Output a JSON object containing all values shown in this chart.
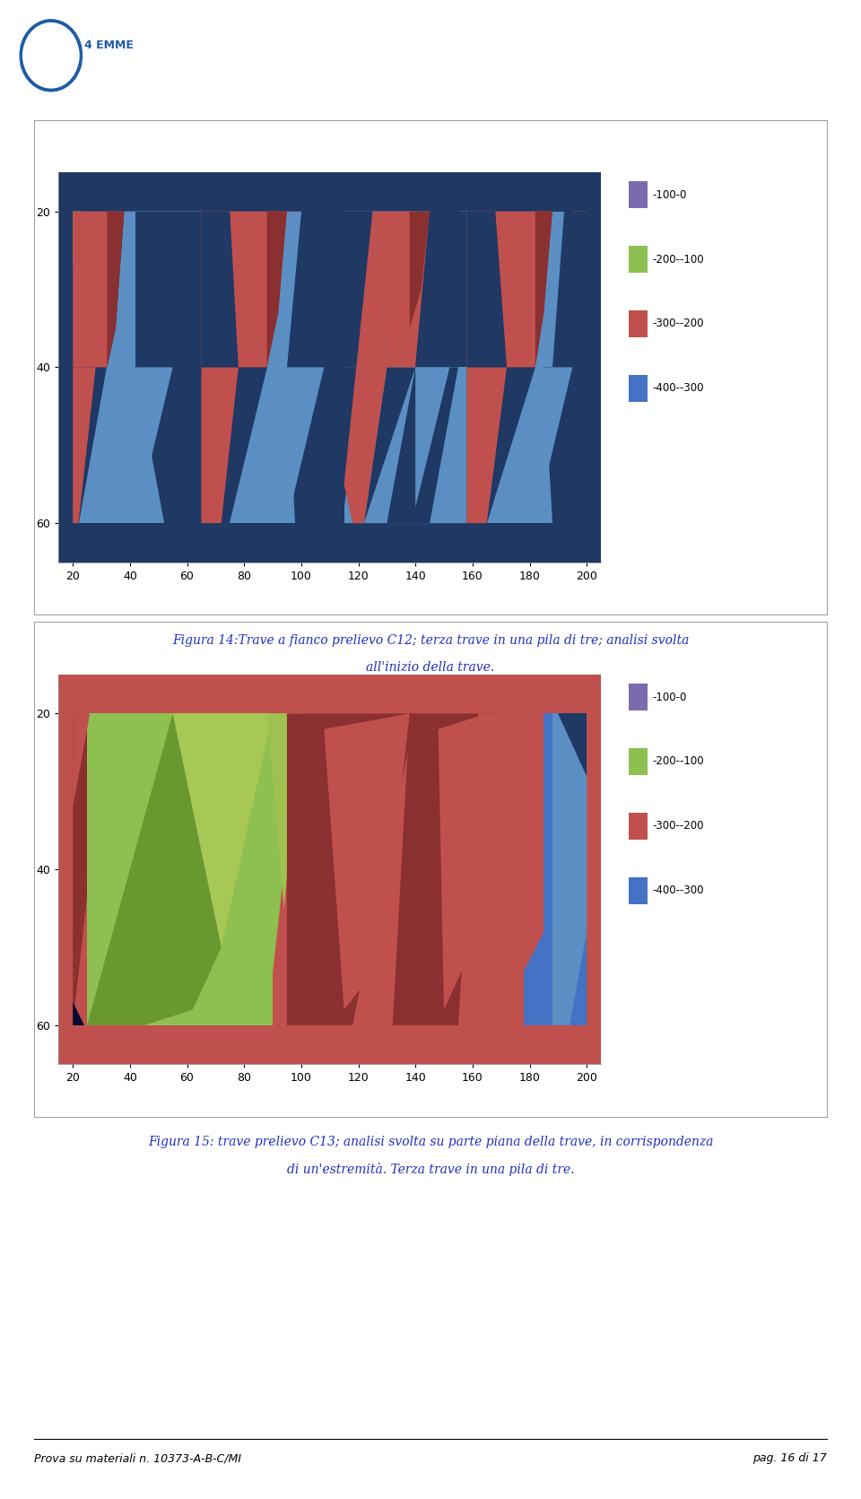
{
  "fig_width": 9.6,
  "fig_height": 16.71,
  "background_color": "#ffffff",
  "chart1_caption1": "Figura 14:Trave a fianco prelievo C12; terza trave in una pila di tre; analisi svolta",
  "chart1_caption2": "all'inizio della trave.",
  "chart2_caption1": "Figura 15: trave prelievo C13; analisi svolta su parte piana della trave, in corrispondenza",
  "chart2_caption2": "di un'estremità. Terza trave in una pila di tre.",
  "xlim": [
    15,
    205
  ],
  "ylim": [
    65,
    15
  ],
  "xticks": [
    20,
    40,
    60,
    80,
    100,
    120,
    140,
    160,
    180,
    200
  ],
  "yticks": [
    20,
    40,
    60
  ],
  "legend_labels": [
    "-100-0",
    "-200--100",
    "-300--200",
    "-400--300"
  ],
  "legend_colors": [
    "#7B6BAE",
    "#8DC050",
    "#C0504D",
    "#4472C4"
  ],
  "color_purple": "#7B6BAE",
  "color_green": "#8DC050",
  "color_red": "#C0504D",
  "color_blue": "#4472C4",
  "color_darkblue": "#1F3864",
  "color_midblue": "#4472C4",
  "color_lightblue": "#5B8FC4",
  "color_darkred": "#8B3030",
  "color_brown": "#7B3030",
  "footer_left": "Prova su materiali n. 10373-A-B-C/MI",
  "footer_right": "pag. 16 di 17",
  "caption_color": "#2030C0",
  "caption_fontsize": 10
}
